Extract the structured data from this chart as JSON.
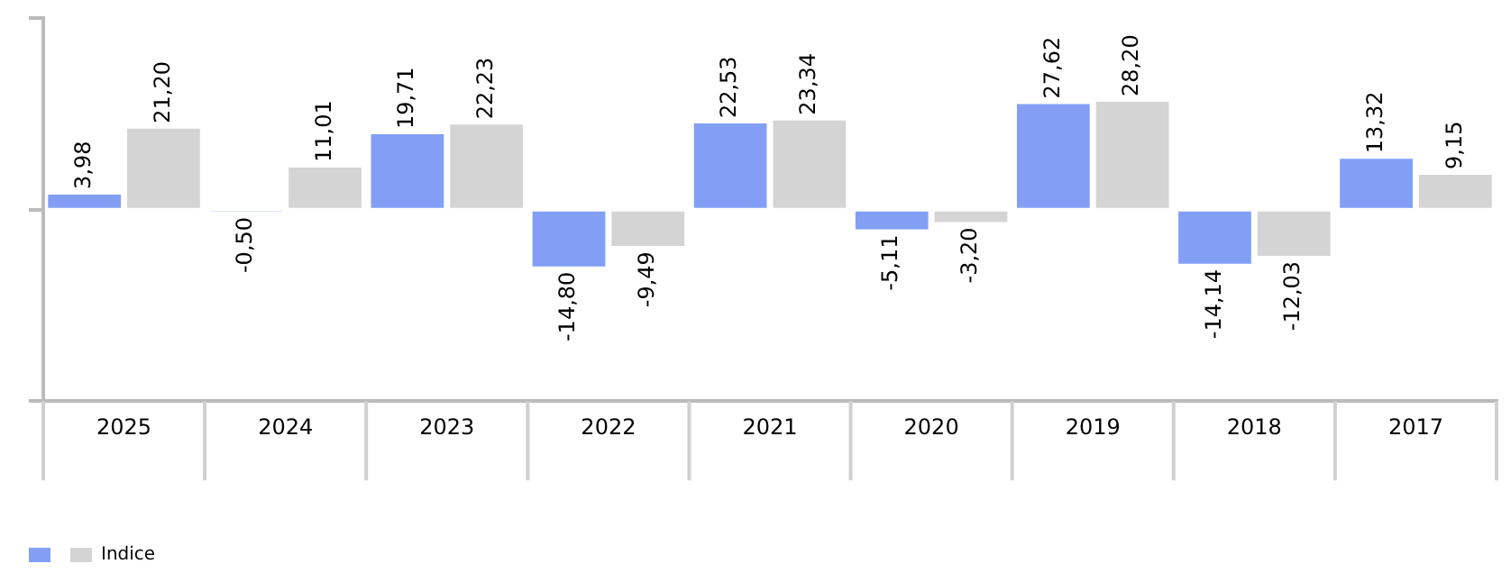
{
  "chart_data": {
    "type": "bar",
    "categories": [
      "2025",
      "2024",
      "2023",
      "2022",
      "2021",
      "2020",
      "2019",
      "2018",
      "2017"
    ],
    "series": [
      {
        "color": "#829ff5",
        "values": [
          3.98,
          -0.5,
          19.71,
          -14.8,
          22.53,
          -5.11,
          27.62,
          -14.14,
          13.32
        ],
        "value_labels": [
          "3,98",
          "-0,50",
          "19,71",
          "-14,80",
          "22,53",
          "-5,11",
          "27,62",
          "-14,14",
          "13,32"
        ]
      },
      {
        "name": "Indice",
        "color": "#d4d4d4",
        "values": [
          21.2,
          11.01,
          22.23,
          -9.49,
          23.34,
          -3.2,
          28.2,
          -12.03,
          9.15
        ],
        "value_labels": [
          "21,20",
          "11,01",
          "22,23",
          "-9,49",
          "23,34",
          "-3,20",
          "28,20",
          "-12,03",
          "9,15"
        ]
      }
    ],
    "tick_labels": "x",
    "grid": false,
    "legend": "bottom left"
  }
}
